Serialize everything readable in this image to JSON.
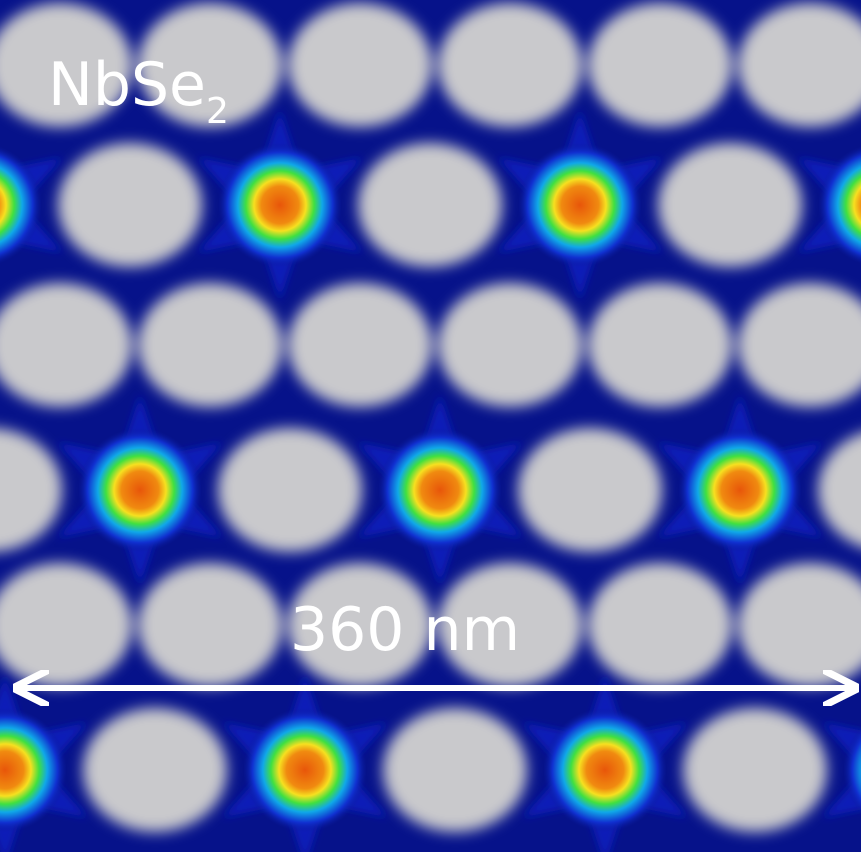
{
  "label": {
    "text": "NbSe",
    "subscript": "2"
  },
  "scale_bar": {
    "label": "360 nm"
  }
}
